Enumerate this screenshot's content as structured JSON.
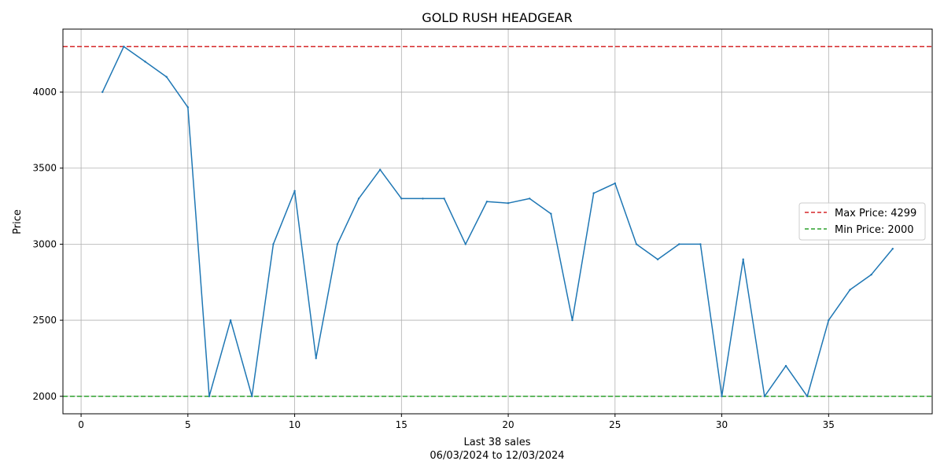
{
  "chart_data": {
    "type": "line",
    "title": "GOLD RUSH HEADGEAR",
    "xlabel": "Last 38 sales",
    "xlabel_sub": "06/03/2024 to 12/03/2024",
    "ylabel": "Price",
    "xlim": [
      -0.85,
      39.85
    ],
    "ylim": [
      1885,
      4414
    ],
    "xticks": [
      0,
      5,
      10,
      15,
      20,
      25,
      30,
      35
    ],
    "yticks": [
      2000,
      2500,
      3000,
      3500,
      4000
    ],
    "grid": true,
    "legend_position": "right",
    "series": [
      {
        "color": "#1f77b4",
        "x": [
          1,
          2,
          3,
          4,
          5,
          6,
          7,
          8,
          9,
          10,
          11,
          12,
          13,
          14,
          15,
          16,
          17,
          18,
          19,
          20,
          21,
          22,
          23,
          24,
          25,
          26,
          27,
          28,
          29,
          30,
          31,
          32,
          33,
          34,
          35,
          36,
          37,
          38
        ],
        "values": [
          4000,
          4299,
          4200,
          4100,
          3900,
          2000,
          2500,
          2000,
          3000,
          3350,
          2250,
          3000,
          3300,
          3490,
          3300,
          3300,
          3300,
          3000,
          3280,
          3270,
          3300,
          3200,
          2500,
          3335,
          3400,
          3000,
          2900,
          3000,
          3000,
          2000,
          2900,
          2000,
          2200,
          2000,
          2500,
          2700,
          2800,
          2970
        ]
      }
    ],
    "reference_lines": [
      {
        "label": "Max Price: 4299",
        "value": 4299,
        "color": "#d62728",
        "style": "dashed"
      },
      {
        "label": "Min Price: 2000",
        "value": 2000,
        "color": "#2ca02c",
        "style": "dashed"
      }
    ]
  }
}
